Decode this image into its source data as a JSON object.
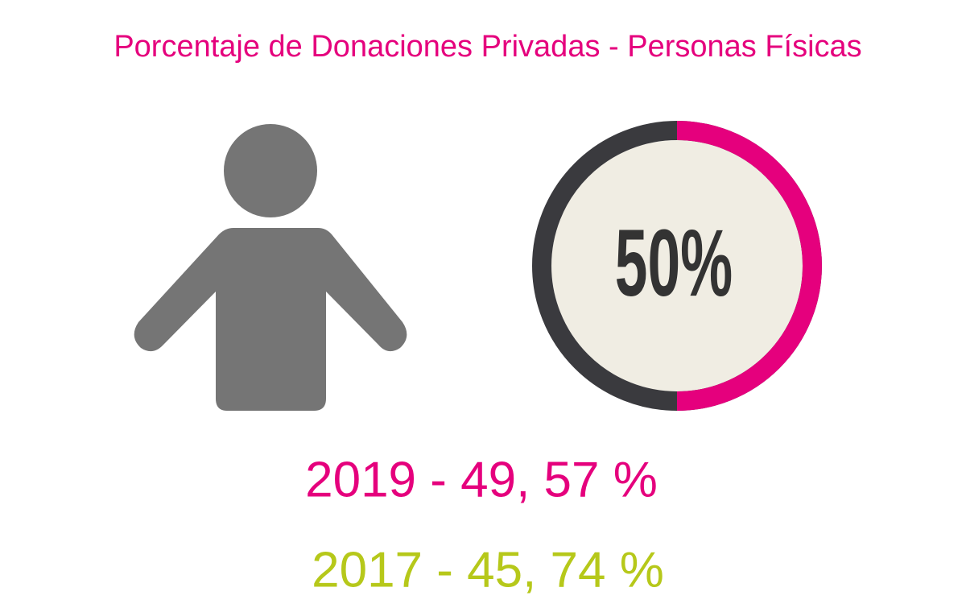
{
  "chart_data": {
    "type": "donut",
    "title": "Porcentaje de Donaciones Privadas  - Personas Físicas",
    "value": 50,
    "value_label": "50%",
    "color": "#e5007d",
    "track_color": "#3a3a3e",
    "annotations": [
      "2019 - 49, 57 %",
      "2017 - 45, 74 %"
    ],
    "annotation_colors": [
      "#e5007d",
      "#b6c81a"
    ]
  }
}
